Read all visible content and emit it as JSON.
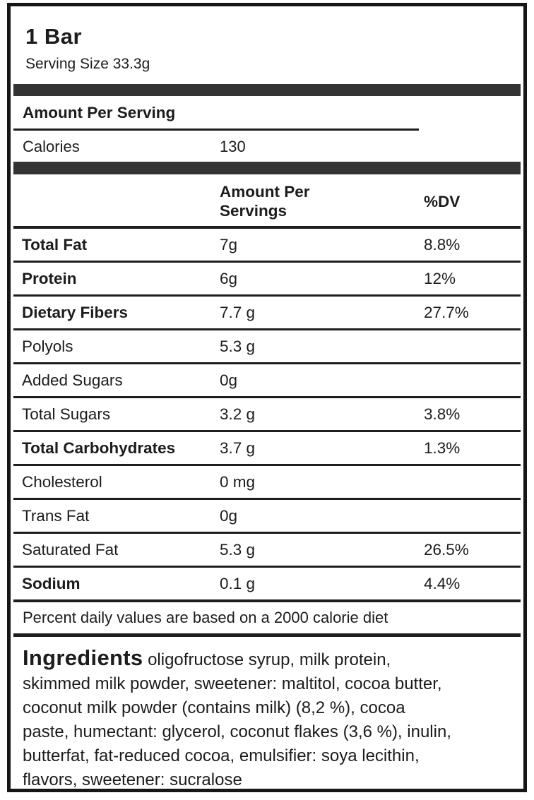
{
  "label": {
    "serving_title": "1 Bar",
    "serving_size": "Serving Size 33.3g",
    "amount_per_serving_heading": "Amount Per Serving",
    "calories_label": "Calories",
    "calories_value": "130",
    "table": {
      "amount_column": "Amount Per Servings",
      "dv_column": "%DV",
      "rows": [
        {
          "name": "Total Fat",
          "amount": "7g",
          "dv": "8.8%",
          "bold": true
        },
        {
          "name": "Protein",
          "amount": "6g",
          "dv": "12%",
          "bold": true
        },
        {
          "name": "Dietary Fibers",
          "amount": "7.7 g",
          "dv": "27.7%",
          "bold": true
        },
        {
          "name": "Polyols",
          "amount": "5.3 g",
          "dv": "",
          "bold": false
        },
        {
          "name": "Added Sugars",
          "amount": "0g",
          "dv": "",
          "bold": false
        },
        {
          "name": "Total Sugars",
          "amount": "3.2 g",
          "dv": "3.8%",
          "bold": false
        },
        {
          "name": "Total Carbohydrates",
          "amount": "3.7 g",
          "dv": "1.3%",
          "bold": true
        },
        {
          "name": "Cholesterol",
          "amount": "0 mg",
          "dv": "",
          "bold": false
        },
        {
          "name": "Trans Fat",
          "amount": "0g",
          "dv": "",
          "bold": false
        },
        {
          "name": "Saturated Fat",
          "amount": "5.3 g",
          "dv": "26.5%",
          "bold": false
        },
        {
          "name": "Sodium",
          "amount": "0.1 g",
          "dv": "4.4%",
          "bold": true
        }
      ]
    },
    "footnote": "Percent daily values are based on a 2000 calorie diet",
    "ingredients_heading": "Ingredients",
    "ingredients_text": "oligofructose syrup, milk protein,\nskimmed milk powder, sweetener: maltitol, cocoa butter,\ncoconut milk powder (contains milk) (8,2 %), cocoa\npaste, humectant: glycerol, coconut flakes (3,6 %), inulin,\nbutterfat, fat-reduced cocoa, emulsifier: soya lecithin,\nflavors, sweetener: sucralose"
  },
  "colors": {
    "divider_bar": "#333333",
    "rule": "#1e1e1e",
    "text": "#1c1c1c",
    "background": "#ffffff"
  }
}
